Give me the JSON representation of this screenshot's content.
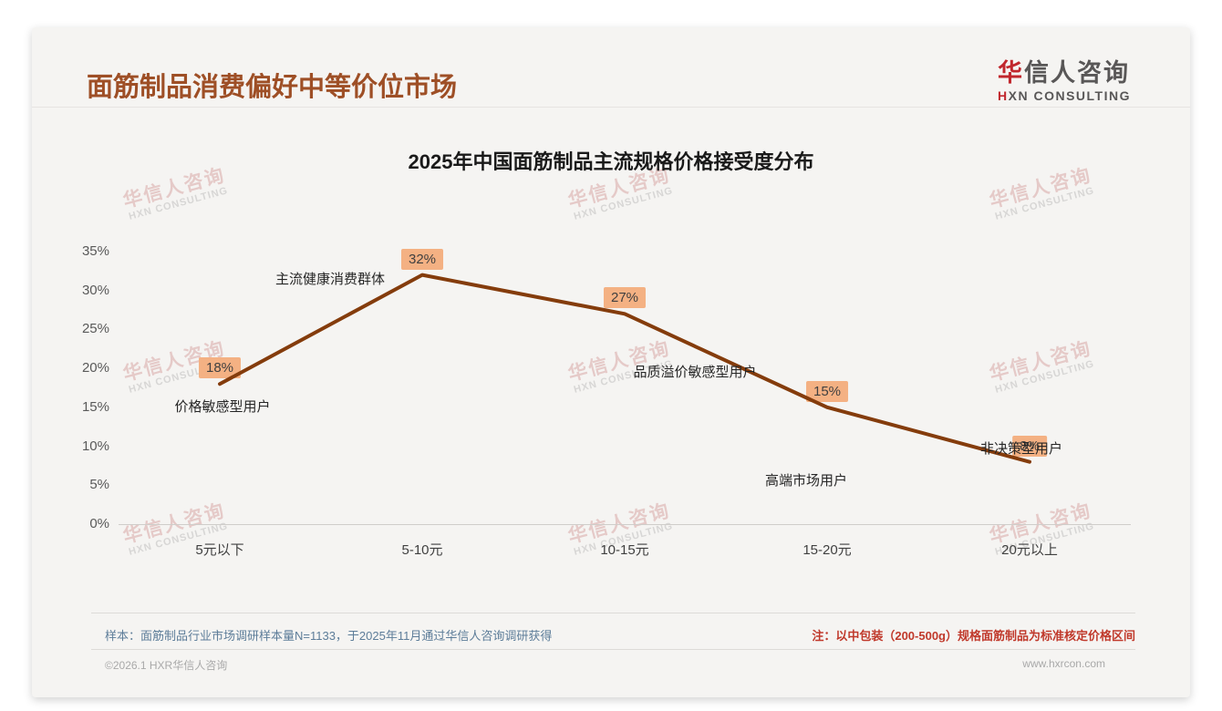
{
  "header": {
    "title": "面筋制品消费偏好中等价位市场",
    "logo": {
      "cn_first": "华",
      "cn_rest": "信人咨询",
      "en_first": "H",
      "en_rest": "XN CONSULTING"
    }
  },
  "chart_data": {
    "type": "line",
    "title": "2025年中国面筋制品主流规格价格接受度分布",
    "categories": [
      "5元以下",
      "5-10元",
      "10-15元",
      "15-20元",
      "20元以上"
    ],
    "values": [
      18,
      32,
      27,
      15,
      8
    ],
    "data_labels": [
      "18%",
      "32%",
      "27%",
      "15%",
      "8%"
    ],
    "annotations": [
      "价格敏感型用户",
      "主流健康消费群体",
      "品质溢价敏感型用户",
      "高端市场用户",
      "非决策型用户"
    ],
    "y_ticks": [
      "0%",
      "5%",
      "10%",
      "15%",
      "20%",
      "25%",
      "30%",
      "35%"
    ],
    "xlabel": "",
    "ylabel": "",
    "ylim": [
      0,
      35
    ],
    "grid": false,
    "legend": false,
    "line_color": "#843C0C",
    "label_bg_color": "#F4B183"
  },
  "footnotes": {
    "sample_note": "样本：面筋制品行业市场调研样本量N=1133，于2025年11月通过华信人咨询调研获得",
    "price_note": "注：以中包装（200-500g）规格面筋制品为标准核定价格区间"
  },
  "footer": {
    "copyright": "©2026.1 HXR华信人咨询",
    "website": "www.hxrcon.com"
  },
  "watermark": {
    "line1": "华信人咨询",
    "line2": "HXN CONSULTING"
  },
  "colors": {
    "title_brown": "#9E4F26",
    "line_brown": "#843C0C",
    "label_peach": "#F4B183",
    "note_red": "#C0392B",
    "note_blue": "#5D7D99",
    "logo_red": "#C1272D"
  }
}
